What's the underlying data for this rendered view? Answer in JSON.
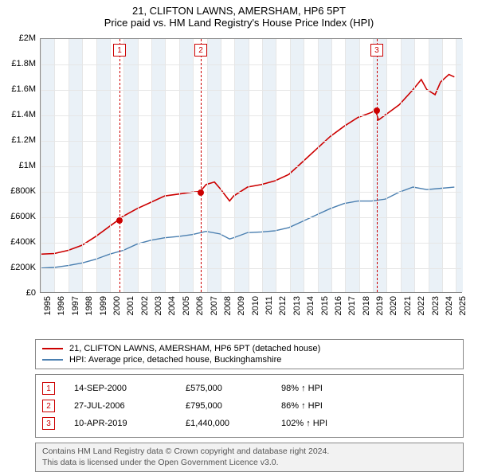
{
  "title": {
    "line1": "21, CLIFTON LAWNS, AMERSHAM, HP6 5PT",
    "line2": "Price paid vs. HM Land Registry's House Price Index (HPI)"
  },
  "chart": {
    "type": "line",
    "plot_bg": "#ffffff",
    "band_bg": "#eaf1f7",
    "grid_color": "#e6e6e6",
    "border_color": "#888888",
    "x_years": [
      1995,
      1996,
      1997,
      1998,
      1999,
      2000,
      2001,
      2002,
      2003,
      2004,
      2005,
      2006,
      2007,
      2008,
      2009,
      2010,
      2011,
      2012,
      2013,
      2014,
      2015,
      2016,
      2017,
      2018,
      2019,
      2020,
      2021,
      2022,
      2023,
      2024,
      2025
    ],
    "x_range": [
      1995,
      2025.5
    ],
    "y_range": [
      0,
      2000000
    ],
    "y_ticks": [
      0,
      200000,
      400000,
      600000,
      800000,
      1000000,
      1200000,
      1400000,
      1600000,
      1800000,
      2000000
    ],
    "y_tick_labels": [
      "£0",
      "£200K",
      "£400K",
      "£600K",
      "£800K",
      "£1M",
      "£1.2M",
      "£1.4M",
      "£1.6M",
      "£1.8M",
      "£2M"
    ],
    "series": [
      {
        "name": "21, CLIFTON LAWNS, AMERSHAM, HP6 5PT (detached house)",
        "color": "#cc0000",
        "width": 1.6,
        "data": [
          [
            1995,
            300000
          ],
          [
            1996,
            305000
          ],
          [
            1997,
            330000
          ],
          [
            1998,
            370000
          ],
          [
            1999,
            440000
          ],
          [
            2000,
            520000
          ],
          [
            2000.7,
            575000
          ],
          [
            2001,
            600000
          ],
          [
            2002,
            660000
          ],
          [
            2003,
            710000
          ],
          [
            2004,
            760000
          ],
          [
            2005,
            775000
          ],
          [
            2006,
            790000
          ],
          [
            2006.57,
            795000
          ],
          [
            2007,
            850000
          ],
          [
            2007.6,
            870000
          ],
          [
            2008,
            820000
          ],
          [
            2008.7,
            720000
          ],
          [
            2009,
            760000
          ],
          [
            2010,
            830000
          ],
          [
            2011,
            850000
          ],
          [
            2012,
            880000
          ],
          [
            2013,
            930000
          ],
          [
            2014,
            1030000
          ],
          [
            2015,
            1130000
          ],
          [
            2016,
            1230000
          ],
          [
            2017,
            1310000
          ],
          [
            2018,
            1380000
          ],
          [
            2019,
            1420000
          ],
          [
            2019.28,
            1440000
          ],
          [
            2019.5,
            1360000
          ],
          [
            2020,
            1400000
          ],
          [
            2021,
            1480000
          ],
          [
            2022,
            1600000
          ],
          [
            2022.6,
            1680000
          ],
          [
            2023,
            1600000
          ],
          [
            2023.6,
            1560000
          ],
          [
            2024,
            1660000
          ],
          [
            2024.6,
            1720000
          ],
          [
            2025,
            1700000
          ]
        ]
      },
      {
        "name": "HPI: Average price, detached house, Buckinghamshire",
        "color": "#4a7fb0",
        "width": 1.4,
        "data": [
          [
            1995,
            190000
          ],
          [
            1996,
            195000
          ],
          [
            1997,
            210000
          ],
          [
            1998,
            230000
          ],
          [
            1999,
            260000
          ],
          [
            2000,
            300000
          ],
          [
            2001,
            330000
          ],
          [
            2002,
            380000
          ],
          [
            2003,
            410000
          ],
          [
            2004,
            430000
          ],
          [
            2005,
            440000
          ],
          [
            2006,
            455000
          ],
          [
            2007,
            480000
          ],
          [
            2008,
            460000
          ],
          [
            2008.7,
            420000
          ],
          [
            2009,
            430000
          ],
          [
            2010,
            470000
          ],
          [
            2011,
            475000
          ],
          [
            2012,
            485000
          ],
          [
            2013,
            510000
          ],
          [
            2014,
            560000
          ],
          [
            2015,
            610000
          ],
          [
            2016,
            660000
          ],
          [
            2017,
            700000
          ],
          [
            2018,
            720000
          ],
          [
            2019,
            720000
          ],
          [
            2020,
            735000
          ],
          [
            2021,
            790000
          ],
          [
            2022,
            830000
          ],
          [
            2023,
            810000
          ],
          [
            2024,
            820000
          ],
          [
            2025,
            830000
          ]
        ]
      }
    ],
    "event_markers": [
      {
        "n": "1",
        "x": 2000.7,
        "y": 575000
      },
      {
        "n": "2",
        "x": 2006.57,
        "y": 795000
      },
      {
        "n": "3",
        "x": 2019.28,
        "y": 1440000
      }
    ]
  },
  "legend": {
    "rows": [
      {
        "color": "#cc0000",
        "label": "21, CLIFTON LAWNS, AMERSHAM, HP6 5PT (detached house)"
      },
      {
        "color": "#4a7fb0",
        "label": "HPI: Average price, detached house, Buckinghamshire"
      }
    ]
  },
  "events_table": {
    "rows": [
      {
        "n": "1",
        "date": "14-SEP-2000",
        "price": "£575,000",
        "hpi": "98% ↑ HPI"
      },
      {
        "n": "2",
        "date": "27-JUL-2006",
        "price": "£795,000",
        "hpi": "86% ↑ HPI"
      },
      {
        "n": "3",
        "date": "10-APR-2019",
        "price": "£1,440,000",
        "hpi": "102% ↑ HPI"
      }
    ]
  },
  "footer": {
    "line1": "Contains HM Land Registry data © Crown copyright and database right 2024.",
    "line2": "This data is licensed under the Open Government Licence v3.0."
  }
}
